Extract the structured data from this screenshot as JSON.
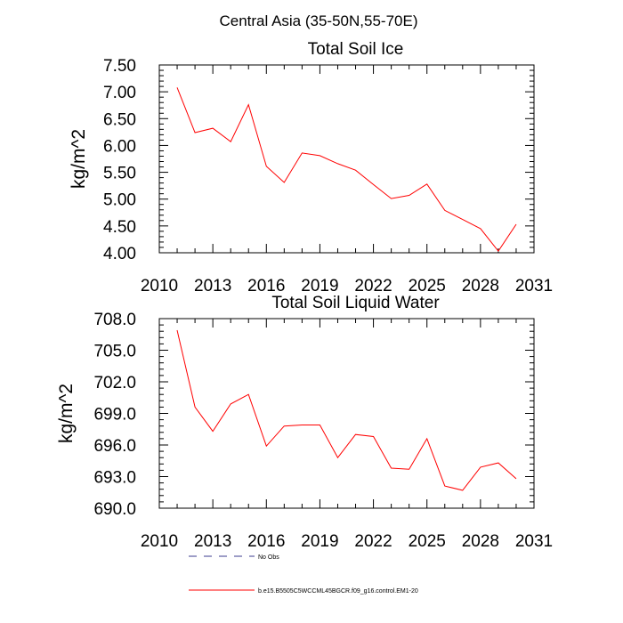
{
  "figure": {
    "title": "Central Asia (35-50N,55-70E)"
  },
  "chart_data": [
    {
      "type": "line",
      "title": "Total Soil Ice",
      "ylabel": "kg/m^2",
      "xlabel": "",
      "xlim": [
        2010,
        2031
      ],
      "ylim": [
        4.0,
        7.5
      ],
      "xticks": [
        2010,
        2013,
        2016,
        2019,
        2022,
        2025,
        2028,
        2031
      ],
      "xtick_labels": [
        "2010",
        "2013",
        "2016",
        "2019",
        "2022",
        "2025",
        "2028",
        "2031"
      ],
      "yticks": [
        4.0,
        4.5,
        5.0,
        5.5,
        6.0,
        6.5,
        7.0,
        7.5
      ],
      "ytick_labels": [
        "4.00",
        "4.50",
        "5.00",
        "5.50",
        "6.00",
        "6.50",
        "7.00",
        "7.50"
      ],
      "grid": false,
      "series": [
        {
          "name": "b.e15.B5505C5WCCML45BGCR.f09_g16.control.EM1-20",
          "color": "#ff0000",
          "x": [
            2011,
            2012,
            2013,
            2014,
            2015,
            2016,
            2017,
            2018,
            2019,
            2020,
            2021,
            2022,
            2023,
            2024,
            2025,
            2026,
            2027,
            2028,
            2029,
            2030
          ],
          "y": [
            7.08,
            6.24,
            6.32,
            6.07,
            6.76,
            5.61,
            5.31,
            5.86,
            5.81,
            5.66,
            5.54,
            5.27,
            5.01,
            5.07,
            5.28,
            4.79,
            4.62,
            4.45,
            4.03,
            4.53
          ]
        }
      ]
    },
    {
      "type": "line",
      "title": "Total Soil Liquid Water",
      "ylabel": "kg/m^2",
      "xlabel": "",
      "xlim": [
        2010,
        2031
      ],
      "ylim": [
        690.0,
        708.0
      ],
      "xticks": [
        2010,
        2013,
        2016,
        2019,
        2022,
        2025,
        2028,
        2031
      ],
      "xtick_labels": [
        "2010",
        "2013",
        "2016",
        "2019",
        "2022",
        "2025",
        "2028",
        "2031"
      ],
      "yticks": [
        690.0,
        693.0,
        696.0,
        699.0,
        702.0,
        705.0,
        708.0
      ],
      "ytick_labels": [
        "690.0",
        "693.0",
        "696.0",
        "699.0",
        "702.0",
        "705.0",
        "708.0"
      ],
      "grid": false,
      "series": [
        {
          "name": "b.e15.B5505C5WCCML45BGCR.f09_g16.control.EM1-20",
          "color": "#ff0000",
          "x": [
            2011,
            2012,
            2013,
            2014,
            2015,
            2016,
            2017,
            2018,
            2019,
            2020,
            2021,
            2022,
            2023,
            2024,
            2025,
            2026,
            2027,
            2028,
            2029,
            2030
          ],
          "y": [
            706.9,
            699.6,
            697.3,
            699.9,
            700.8,
            695.9,
            697.8,
            697.9,
            697.9,
            694.8,
            697.0,
            696.8,
            693.8,
            693.7,
            696.6,
            692.1,
            691.7,
            693.9,
            694.3,
            692.8
          ]
        }
      ]
    }
  ],
  "legend": {
    "placement": "bottom",
    "entries": [
      {
        "label": "No Obs",
        "color": "#3b3b8f",
        "style": "dashed"
      },
      {
        "label": "b.e15.B5505C5WCCML45BGCR.f09_g16.control.EM1-20",
        "color": "#ff0000",
        "style": "solid"
      }
    ]
  }
}
